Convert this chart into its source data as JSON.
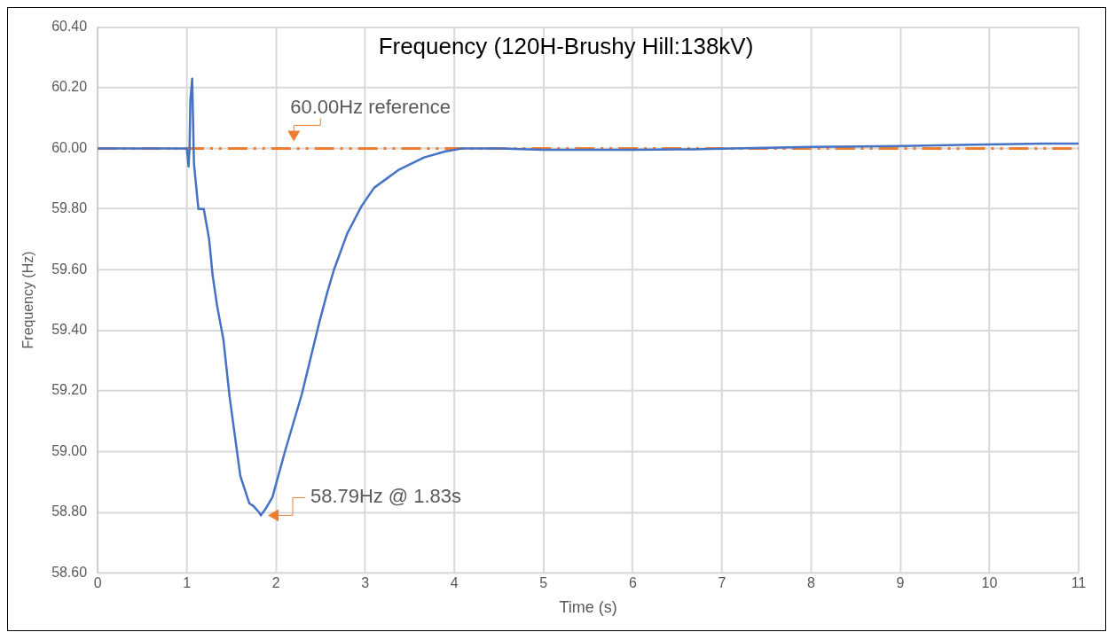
{
  "chart_data": {
    "type": "line",
    "title": "Frequency (120H-Brushy Hill:138kV)",
    "xlabel": "Time (s)",
    "ylabel": "Frequency (Hz)",
    "series": [
      {
        "color": "#4472c4",
        "x": [
          0,
          0.5,
          1.0,
          1.02,
          1.03,
          1.04,
          1.06,
          1.08,
          1.13,
          1.19,
          1.25,
          1.29,
          1.34,
          1.41,
          1.48,
          1.6,
          1.7,
          1.75,
          1.81,
          1.83,
          1.88,
          1.96,
          2.1,
          2.29,
          2.48,
          2.57,
          2.65,
          2.8,
          2.96,
          3.1,
          3.38,
          3.66,
          3.9,
          4.1,
          4.5,
          5,
          6,
          6.67,
          7.1,
          8,
          9,
          9.8,
          10.6,
          11
        ],
        "values": [
          60.0,
          60.0,
          60.0,
          59.94,
          60.0,
          60.16,
          60.23,
          59.95,
          59.8,
          59.8,
          59.7,
          59.58,
          59.48,
          59.37,
          59.18,
          58.92,
          58.83,
          58.82,
          58.8,
          58.79,
          58.81,
          58.85,
          59.0,
          59.19,
          59.42,
          59.52,
          59.6,
          59.72,
          59.81,
          59.87,
          59.93,
          59.97,
          59.99,
          60.0,
          60.0,
          59.995,
          59.995,
          59.997,
          60.0,
          60.005,
          60.008,
          60.012,
          60.016,
          60.016
        ]
      }
    ],
    "xlim": [
      0,
      11
    ],
    "xticks": [
      0,
      1,
      2,
      3,
      4,
      5,
      6,
      7,
      8,
      9,
      10,
      11
    ],
    "ylim": [
      58.6,
      60.4
    ],
    "yticks": [
      {
        "value": 58.6,
        "label": "58.60"
      },
      {
        "value": 58.8,
        "label": "58.80"
      },
      {
        "value": 59.0,
        "label": "59.00"
      },
      {
        "value": 59.2,
        "label": "59.20"
      },
      {
        "value": 59.4,
        "label": "59.40"
      },
      {
        "value": 59.6,
        "label": "59.60"
      },
      {
        "value": 59.8,
        "label": "59.80"
      },
      {
        "value": 60.0,
        "label": "60.00"
      },
      {
        "value": 60.2,
        "label": "60.20"
      },
      {
        "value": 60.4,
        "label": "60.40"
      }
    ],
    "ref_lines": [
      {
        "axis": "y",
        "value": 60.0,
        "label": "60.00Hz reference",
        "color": "#ed7d31",
        "line_style": "dashed"
      }
    ],
    "annotations": [
      {
        "text": "58.79Hz @ 1.83s",
        "x": 1.83,
        "y": 58.79
      }
    ],
    "grid": true,
    "legend": false,
    "marker": "none",
    "line_style": "solid"
  }
}
